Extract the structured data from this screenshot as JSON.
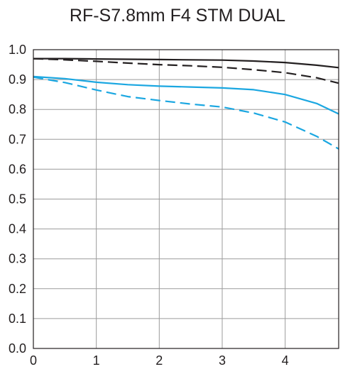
{
  "chart_data": {
    "type": "line",
    "title": "RF-S7.8mm F4 STM DUAL",
    "xlabel": "",
    "ylabel": "",
    "xlim": [
      0,
      4.85
    ],
    "ylim": [
      0,
      1.0
    ],
    "x_ticks": [
      "0",
      "1",
      "2",
      "3",
      "4"
    ],
    "x_tick_values": [
      0,
      1,
      2,
      3,
      4
    ],
    "y_ticks": [
      "0.0",
      "0.1",
      "0.2",
      "0.3",
      "0.4",
      "0.5",
      "0.6",
      "0.7",
      "0.8",
      "0.9",
      "1.0"
    ],
    "y_tick_values": [
      0,
      0.1,
      0.2,
      0.3,
      0.4,
      0.5,
      0.6,
      0.7,
      0.8,
      0.9,
      1.0
    ],
    "grid": true,
    "series": [
      {
        "color": "#231f20",
        "dash": "solid",
        "x": [
          0,
          0.5,
          1,
          1.5,
          2,
          2.5,
          3,
          3.5,
          4,
          4.5,
          4.85
        ],
        "y": [
          0.97,
          0.97,
          0.969,
          0.968,
          0.967,
          0.966,
          0.965,
          0.962,
          0.957,
          0.948,
          0.94
        ]
      },
      {
        "color": "#231f20",
        "dash": "dashed",
        "x": [
          0,
          0.5,
          1,
          1.5,
          2,
          2.5,
          3,
          3.5,
          4,
          4.5,
          4.85
        ],
        "y": [
          0.97,
          0.966,
          0.961,
          0.955,
          0.95,
          0.946,
          0.941,
          0.933,
          0.923,
          0.906,
          0.888
        ]
      },
      {
        "color": "#1ba7e1",
        "dash": "solid",
        "x": [
          0,
          0.5,
          1,
          1.5,
          2,
          2.5,
          3,
          3.5,
          4,
          4.5,
          4.85
        ],
        "y": [
          0.91,
          0.903,
          0.891,
          0.883,
          0.878,
          0.875,
          0.872,
          0.866,
          0.85,
          0.82,
          0.785
        ]
      },
      {
        "color": "#1ba7e1",
        "dash": "dashed",
        "x": [
          0,
          0.5,
          1,
          1.5,
          2,
          2.5,
          3,
          3.5,
          4,
          4.5,
          4.85
        ],
        "y": [
          0.908,
          0.89,
          0.865,
          0.843,
          0.83,
          0.818,
          0.808,
          0.788,
          0.758,
          0.71,
          0.668
        ]
      }
    ]
  }
}
